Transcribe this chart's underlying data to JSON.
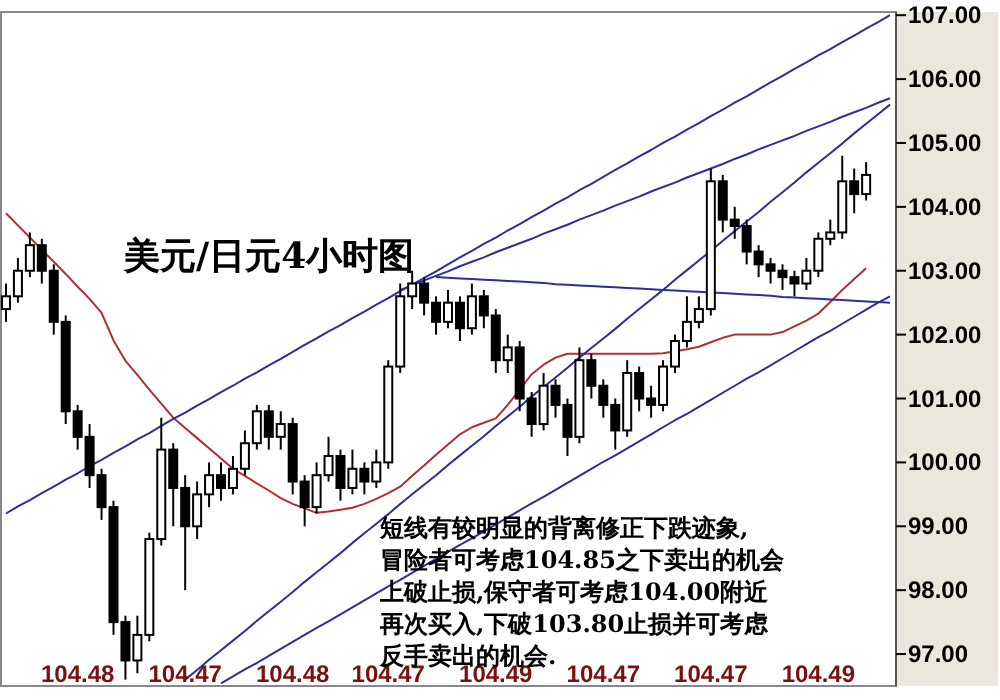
{
  "chart_data": {
    "type": "candlestick",
    "title": "美元/日元4小时图",
    "annotations": [
      "短线有较明显的背离修正下跌迹象,",
      "冒险者可考虑104.85之下卖出的机会",
      "上破止损,保守者可考虑104.00附近",
      "再次买入,下破103.80止损并可考虑",
      "反手卖出的机会."
    ],
    "categories": [
      null,
      null,
      null,
      null,
      null,
      null,
      "104.48",
      null,
      null,
      null,
      null,
      null,
      null,
      null,
      null,
      "104.47",
      null,
      null,
      null,
      null,
      null,
      null,
      null,
      null,
      "104.48",
      null,
      null,
      null,
      null,
      null,
      null,
      null,
      "104.47",
      null,
      null,
      null,
      null,
      null,
      null,
      null,
      null,
      "104.49",
      null,
      null,
      null,
      null,
      null,
      null,
      null,
      null,
      "104.47",
      null,
      null,
      null,
      null,
      null,
      null,
      null,
      null,
      "104.47",
      null,
      null,
      null,
      null,
      null,
      null,
      null,
      null,
      "104.49",
      null,
      null,
      null,
      null,
      null,
      null
    ],
    "ylim": [
      96.5,
      107.05
    ],
    "yticks": [
      {
        "value": 97,
        "label": "97.00"
      },
      {
        "value": 98,
        "label": "98.00"
      },
      {
        "value": 99,
        "label": "99.00"
      },
      {
        "value": 100,
        "label": "100.00"
      },
      {
        "value": 101,
        "label": "101.00"
      },
      {
        "value": 102,
        "label": "102.00"
      },
      {
        "value": 103,
        "label": "103.00"
      },
      {
        "value": 104,
        "label": "104.00"
      },
      {
        "value": 105,
        "label": "105.00"
      },
      {
        "value": 106,
        "label": "106.00"
      },
      {
        "value": 107,
        "label": "107.00"
      }
    ],
    "ohlc": [
      [
        102.4,
        102.8,
        102.2,
        102.6
      ],
      [
        102.6,
        103.2,
        102.5,
        103.0
      ],
      [
        103.0,
        103.6,
        102.9,
        103.4
      ],
      [
        103.4,
        103.5,
        102.8,
        103.0
      ],
      [
        103.0,
        103.1,
        102.0,
        102.2
      ],
      [
        102.2,
        102.3,
        100.6,
        100.8
      ],
      [
        100.8,
        100.9,
        100.2,
        100.4
      ],
      [
        100.4,
        100.6,
        99.6,
        99.8
      ],
      [
        99.8,
        99.9,
        99.1,
        99.3
      ],
      [
        99.3,
        99.4,
        97.3,
        97.5
      ],
      [
        97.5,
        97.6,
        96.6,
        96.9
      ],
      [
        96.9,
        97.6,
        96.7,
        97.3
      ],
      [
        97.3,
        98.9,
        97.2,
        98.8
      ],
      [
        98.8,
        100.7,
        98.7,
        100.2
      ],
      [
        100.2,
        100.3,
        99.0,
        99.6
      ],
      [
        99.6,
        99.8,
        98.0,
        99.0
      ],
      [
        99.0,
        99.7,
        98.8,
        99.5
      ],
      [
        99.5,
        100.0,
        99.3,
        99.8
      ],
      [
        99.8,
        100.0,
        99.4,
        99.6
      ],
      [
        99.6,
        100.1,
        99.5,
        99.9
      ],
      [
        99.9,
        100.5,
        99.8,
        100.3
      ],
      [
        100.3,
        100.9,
        100.2,
        100.8
      ],
      [
        100.8,
        100.9,
        100.2,
        100.4
      ],
      [
        100.4,
        100.8,
        100.2,
        100.6
      ],
      [
        100.6,
        100.7,
        99.5,
        99.7
      ],
      [
        99.7,
        99.8,
        99.0,
        99.3
      ],
      [
        99.3,
        100.0,
        99.2,
        99.8
      ],
      [
        99.8,
        100.4,
        99.7,
        100.1
      ],
      [
        100.1,
        100.2,
        99.4,
        99.6
      ],
      [
        99.6,
        100.2,
        99.5,
        99.9
      ],
      [
        99.9,
        100.0,
        99.5,
        99.7
      ],
      [
        99.7,
        100.2,
        99.6,
        100.0
      ],
      [
        100.0,
        101.6,
        99.9,
        101.5
      ],
      [
        101.5,
        102.8,
        101.4,
        102.6
      ],
      [
        102.6,
        103.0,
        102.4,
        102.8
      ],
      [
        102.8,
        102.9,
        102.3,
        102.5
      ],
      [
        102.5,
        102.6,
        102.0,
        102.2
      ],
      [
        102.2,
        102.7,
        102.1,
        102.5
      ],
      [
        102.5,
        102.6,
        101.9,
        102.1
      ],
      [
        102.1,
        102.8,
        102.0,
        102.6
      ],
      [
        102.6,
        102.7,
        102.1,
        102.3
      ],
      [
        102.3,
        102.4,
        101.4,
        101.6
      ],
      [
        101.6,
        102.0,
        101.4,
        101.8
      ],
      [
        101.8,
        101.9,
        100.8,
        101.0
      ],
      [
        101.0,
        101.1,
        100.4,
        100.6
      ],
      [
        100.6,
        101.4,
        100.5,
        101.2
      ],
      [
        101.2,
        101.3,
        100.7,
        100.9
      ],
      [
        100.9,
        101.0,
        100.1,
        100.4
      ],
      [
        100.4,
        101.8,
        100.3,
        101.6
      ],
      [
        101.6,
        101.7,
        101.0,
        101.2
      ],
      [
        101.2,
        101.3,
        100.7,
        100.9
      ],
      [
        100.9,
        101.0,
        100.2,
        100.5
      ],
      [
        100.5,
        101.6,
        100.4,
        101.4
      ],
      [
        101.4,
        101.5,
        100.8,
        101.0
      ],
      [
        101.0,
        101.2,
        100.7,
        100.9
      ],
      [
        100.9,
        101.6,
        100.8,
        101.5
      ],
      [
        101.5,
        102.0,
        101.4,
        101.9
      ],
      [
        101.9,
        102.6,
        101.8,
        102.2
      ],
      [
        102.2,
        102.6,
        102.1,
        102.4
      ],
      [
        102.4,
        104.6,
        102.3,
        104.4
      ],
      [
        104.4,
        104.5,
        103.6,
        103.8
      ],
      [
        103.8,
        104.0,
        103.5,
        103.7
      ],
      [
        103.7,
        103.8,
        103.1,
        103.3
      ],
      [
        103.3,
        103.4,
        102.9,
        103.1
      ],
      [
        103.1,
        103.2,
        102.8,
        103.0
      ],
      [
        103.0,
        103.1,
        102.7,
        102.9
      ],
      [
        102.9,
        103.0,
        102.6,
        102.8
      ],
      [
        102.8,
        103.2,
        102.7,
        103.0
      ],
      [
        103.0,
        103.6,
        102.9,
        103.5
      ],
      [
        103.5,
        103.8,
        103.4,
        103.6
      ],
      [
        103.6,
        104.8,
        103.5,
        104.4
      ],
      [
        104.4,
        104.6,
        103.9,
        104.2
      ],
      [
        104.2,
        104.7,
        104.1,
        104.5
      ],
      null,
      null
    ],
    "series": [
      {
        "type": "line",
        "color": "#b03030",
        "values": [
          103.9,
          103.71,
          103.52,
          103.33,
          103.14,
          102.95,
          102.75,
          102.56,
          102.34,
          101.91,
          101.59,
          101.37,
          101.14,
          100.92,
          100.7,
          100.54,
          100.38,
          100.22,
          100.06,
          99.9,
          99.79,
          99.67,
          99.56,
          99.44,
          99.35,
          99.28,
          99.21,
          99.23,
          99.26,
          99.29,
          99.35,
          99.43,
          99.52,
          99.62,
          99.79,
          99.95,
          100.12,
          100.28,
          100.44,
          100.55,
          100.62,
          100.69,
          100.9,
          101.14,
          101.38,
          101.53,
          101.64,
          101.7,
          101.7,
          101.7,
          101.7,
          101.7,
          101.7,
          101.7,
          101.7,
          101.71,
          101.74,
          101.77,
          101.81,
          101.88,
          101.95,
          102.0,
          102.0,
          102.0,
          102.0,
          102.04,
          102.13,
          102.22,
          102.33,
          102.51,
          102.7,
          102.87,
          103.04,
          null,
          null
        ]
      },
      {
        "type": "line",
        "color": "#2e2e9a",
        "values": [
          99.2,
          99.31,
          99.41,
          99.52,
          99.62,
          99.73,
          99.83,
          99.94,
          100.04,
          100.15,
          100.25,
          100.36,
          100.46,
          100.57,
          100.68,
          100.78,
          100.89,
          100.99,
          101.1,
          101.2,
          101.31,
          101.41,
          101.52,
          101.62,
          101.73,
          101.84,
          101.94,
          102.05,
          102.15,
          102.26,
          102.36,
          102.47,
          102.57,
          102.68,
          102.78,
          102.89,
          102.99,
          103.1,
          103.21,
          103.31,
          103.42,
          103.52,
          103.63,
          103.73,
          103.84,
          103.94,
          104.05,
          104.15,
          104.26,
          104.36,
          104.47,
          104.58,
          104.68,
          104.79,
          104.89,
          105.0,
          105.1,
          105.21,
          105.31,
          105.42,
          105.52,
          105.63,
          105.73,
          105.84,
          105.95,
          106.05,
          106.16,
          106.26,
          106.37,
          106.47,
          106.58,
          106.68,
          106.79,
          106.89,
          107.0
        ]
      },
      {
        "type": "line",
        "color": "#2e2e9a",
        "values": [
          null,
          null,
          null,
          null,
          null,
          null,
          null,
          null,
          null,
          null,
          null,
          null,
          null,
          null,
          null,
          null,
          null,
          null,
          null,
          null,
          null,
          null,
          null,
          null,
          null,
          null,
          null,
          null,
          null,
          null,
          null,
          null,
          null,
          102.7,
          102.77,
          102.85,
          102.92,
          102.99,
          103.07,
          103.14,
          103.21,
          103.29,
          103.36,
          103.43,
          103.5,
          103.58,
          103.65,
          103.72,
          103.8,
          103.87,
          103.94,
          104.02,
          104.09,
          104.16,
          104.24,
          104.31,
          104.38,
          104.46,
          104.53,
          104.6,
          104.67,
          104.75,
          104.82,
          104.9,
          104.97,
          105.04,
          105.11,
          105.19,
          105.26,
          105.33,
          105.41,
          105.48,
          105.55,
          105.63,
          105.7
        ]
      },
      {
        "type": "line",
        "color": "#2e2e9a",
        "values": [
          null,
          null,
          null,
          null,
          null,
          null,
          null,
          null,
          null,
          null,
          null,
          null,
          null,
          null,
          null,
          96.6,
          96.75,
          96.91,
          97.06,
          97.21,
          97.36,
          97.52,
          97.67,
          97.82,
          97.97,
          98.13,
          98.28,
          98.43,
          98.58,
          98.74,
          98.89,
          99.04,
          99.19,
          99.35,
          99.5,
          99.65,
          99.8,
          99.96,
          100.11,
          100.26,
          100.41,
          100.57,
          100.72,
          100.87,
          101.03,
          101.18,
          101.33,
          101.48,
          101.64,
          101.79,
          101.94,
          102.09,
          102.25,
          102.4,
          102.55,
          102.7,
          102.86,
          103.01,
          103.16,
          103.31,
          103.47,
          103.62,
          103.77,
          103.92,
          104.08,
          104.23,
          104.38,
          104.54,
          104.69,
          104.84,
          104.99,
          105.15,
          105.3,
          105.45,
          105.6
        ]
      },
      {
        "type": "line",
        "color": "#2e2e9a",
        "values": [
          null,
          null,
          null,
          null,
          null,
          null,
          null,
          null,
          null,
          null,
          null,
          null,
          null,
          null,
          null,
          null,
          null,
          null,
          null,
          null,
          null,
          null,
          null,
          null,
          null,
          null,
          null,
          null,
          null,
          null,
          null,
          null,
          null,
          null,
          null,
          null,
          102.9,
          102.89,
          102.88,
          102.87,
          102.86,
          102.85,
          102.84,
          102.83,
          102.82,
          102.81,
          102.79,
          102.78,
          102.77,
          102.76,
          102.75,
          102.74,
          102.73,
          102.72,
          102.71,
          102.7,
          102.69,
          102.68,
          102.67,
          102.66,
          102.65,
          102.64,
          102.63,
          102.62,
          102.61,
          102.59,
          102.58,
          102.57,
          102.56,
          102.55,
          102.54,
          102.53,
          102.52,
          102.51,
          102.5
        ]
      },
      {
        "type": "line",
        "color": "#2e2e9a",
        "values": [
          null,
          null,
          null,
          null,
          null,
          null,
          null,
          null,
          null,
          null,
          null,
          null,
          null,
          null,
          null,
          null,
          null,
          null,
          96.54,
          96.65,
          96.76,
          96.86,
          96.97,
          97.08,
          97.19,
          97.3,
          97.41,
          97.51,
          97.62,
          97.73,
          97.84,
          97.95,
          98.06,
          98.16,
          98.27,
          98.38,
          98.49,
          98.6,
          98.71,
          98.81,
          98.92,
          99.03,
          99.14,
          99.25,
          99.36,
          99.46,
          99.57,
          99.68,
          99.79,
          99.9,
          100.01,
          100.11,
          100.22,
          100.33,
          100.44,
          100.55,
          100.66,
          100.76,
          100.87,
          100.98,
          101.09,
          101.2,
          101.31,
          101.41,
          101.52,
          101.63,
          101.74,
          101.85,
          101.96,
          102.06,
          102.17,
          102.28,
          102.39,
          102.5,
          102.6
        ]
      }
    ]
  }
}
